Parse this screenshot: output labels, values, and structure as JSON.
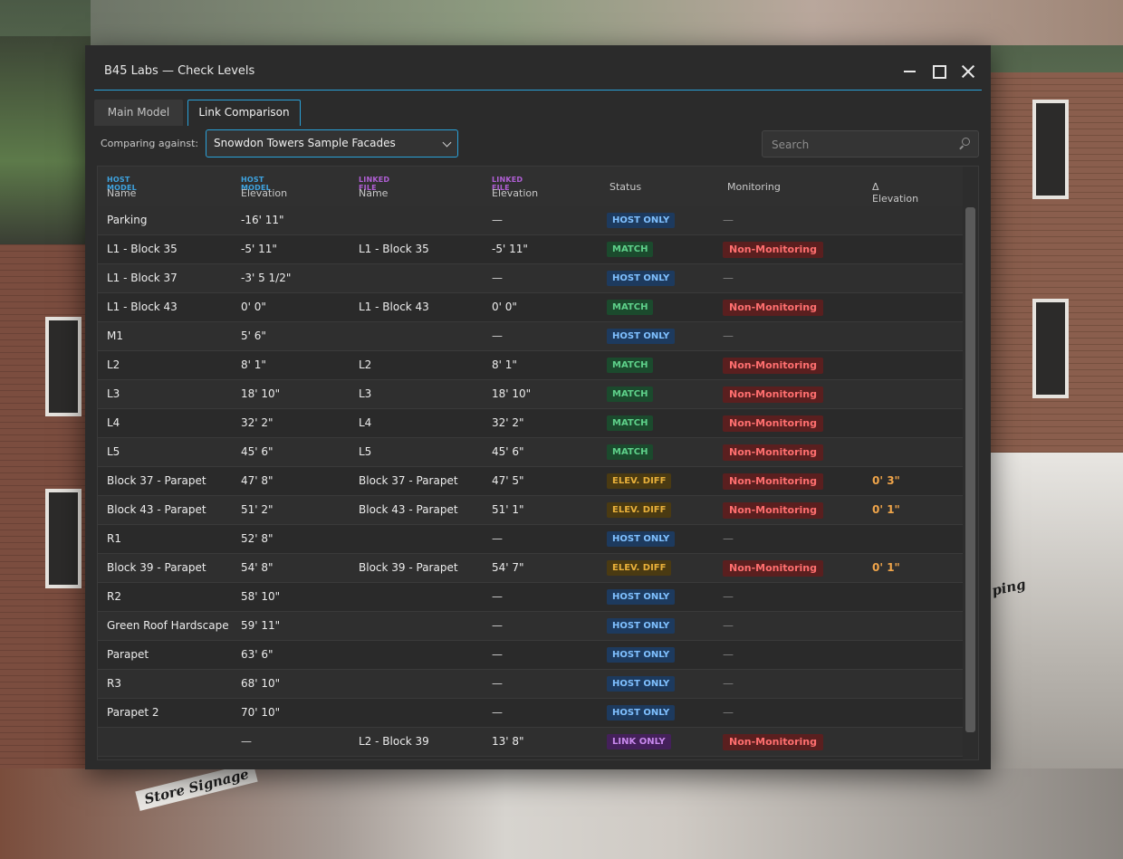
{
  "dialog": {
    "title": "B45 Labs — Check Levels"
  },
  "tabs": [
    {
      "label": "Main Model",
      "active": false
    },
    {
      "label": "Link Comparison",
      "active": true
    }
  ],
  "compare": {
    "label": "Comparing against:",
    "value": "Snowdon Towers Sample Facades"
  },
  "search": {
    "placeholder": "Search"
  },
  "background": {
    "store_sign": "Store Signage",
    "right_sign": "ping"
  },
  "columns": {
    "host_name": {
      "group": "HOST MODEL",
      "label": "Name"
    },
    "host_elev": {
      "group": "HOST MODEL",
      "label": "Elevation"
    },
    "link_name": {
      "group": "LINKED FILE",
      "label": "Name"
    },
    "link_elev": {
      "group": "LINKED FILE",
      "label": "Elevation"
    },
    "status": "Status",
    "monitoring": "Monitoring",
    "delta": "Δ Elevation"
  },
  "rows": [
    {
      "name": "Parking",
      "elev": "-16'  11\"",
      "lname": "",
      "lelev": "—",
      "status": "HOST ONLY",
      "mon": "—",
      "delta": ""
    },
    {
      "name": "L1 - Block 35",
      "elev": "-5'  11\"",
      "lname": "L1 - Block 35",
      "lelev": "-5'  11\"",
      "status": "MATCH",
      "mon": "Non-Monitoring",
      "delta": ""
    },
    {
      "name": "L1 - Block 37",
      "elev": "-3'  5 1/2\"",
      "lname": "",
      "lelev": "—",
      "status": "HOST ONLY",
      "mon": "—",
      "delta": ""
    },
    {
      "name": "L1 - Block 43",
      "elev": "0'  0\"",
      "lname": "L1 - Block 43",
      "lelev": "0'  0\"",
      "status": "MATCH",
      "mon": "Non-Monitoring",
      "delta": ""
    },
    {
      "name": "M1",
      "elev": "5'  6\"",
      "lname": "",
      "lelev": "—",
      "status": "HOST ONLY",
      "mon": "—",
      "delta": ""
    },
    {
      "name": "L2",
      "elev": "8'  1\"",
      "lname": "L2",
      "lelev": "8'  1\"",
      "status": "MATCH",
      "mon": "Non-Monitoring",
      "delta": ""
    },
    {
      "name": "L3",
      "elev": "18'  10\"",
      "lname": "L3",
      "lelev": "18'  10\"",
      "status": "MATCH",
      "mon": "Non-Monitoring",
      "delta": ""
    },
    {
      "name": "L4",
      "elev": "32'  2\"",
      "lname": "L4",
      "lelev": "32'  2\"",
      "status": "MATCH",
      "mon": "Non-Monitoring",
      "delta": ""
    },
    {
      "name": "L5",
      "elev": "45'  6\"",
      "lname": "L5",
      "lelev": "45'  6\"",
      "status": "MATCH",
      "mon": "Non-Monitoring",
      "delta": ""
    },
    {
      "name": "Block 37 - Parapet",
      "elev": "47'  8\"",
      "lname": "Block 37 - Parapet",
      "lelev": "47'  5\"",
      "status": "ELEV. DIFF",
      "mon": "Non-Monitoring",
      "delta": "0'  3\""
    },
    {
      "name": "Block 43 - Parapet",
      "elev": "51'  2\"",
      "lname": "Block 43 - Parapet",
      "lelev": "51'  1\"",
      "status": "ELEV. DIFF",
      "mon": "Non-Monitoring",
      "delta": "0'  1\""
    },
    {
      "name": "R1",
      "elev": "52'  8\"",
      "lname": "",
      "lelev": "—",
      "status": "HOST ONLY",
      "mon": "—",
      "delta": ""
    },
    {
      "name": "Block 39 - Parapet",
      "elev": "54'  8\"",
      "lname": "Block 39 - Parapet",
      "lelev": "54'  7\"",
      "status": "ELEV. DIFF",
      "mon": "Non-Monitoring",
      "delta": "0'  1\""
    },
    {
      "name": "R2",
      "elev": "58'  10\"",
      "lname": "",
      "lelev": "—",
      "status": "HOST ONLY",
      "mon": "—",
      "delta": ""
    },
    {
      "name": "Green Roof Hardscape",
      "elev": "59'  11\"",
      "lname": "",
      "lelev": "—",
      "status": "HOST ONLY",
      "mon": "—",
      "delta": ""
    },
    {
      "name": "Parapet",
      "elev": "63'  6\"",
      "lname": "",
      "lelev": "—",
      "status": "HOST ONLY",
      "mon": "—",
      "delta": ""
    },
    {
      "name": "R3",
      "elev": "68'  10\"",
      "lname": "",
      "lelev": "—",
      "status": "HOST ONLY",
      "mon": "—",
      "delta": ""
    },
    {
      "name": "Parapet 2",
      "elev": "70'  10\"",
      "lname": "",
      "lelev": "—",
      "status": "HOST ONLY",
      "mon": "—",
      "delta": ""
    },
    {
      "name": "",
      "elev": "—",
      "lname": "L2 - Block 39",
      "lelev": "13'  8\"",
      "status": "LINK ONLY",
      "mon": "Non-Monitoring",
      "delta": ""
    }
  ],
  "colors": {
    "accent": "#2aa1d8",
    "host_only": "#7fc0ff",
    "match": "#5ed18a",
    "elev_diff": "#e8b03a",
    "link_only": "#c788ec",
    "non_monitoring": "#ff6f6f",
    "delta": "#f0a54a"
  }
}
